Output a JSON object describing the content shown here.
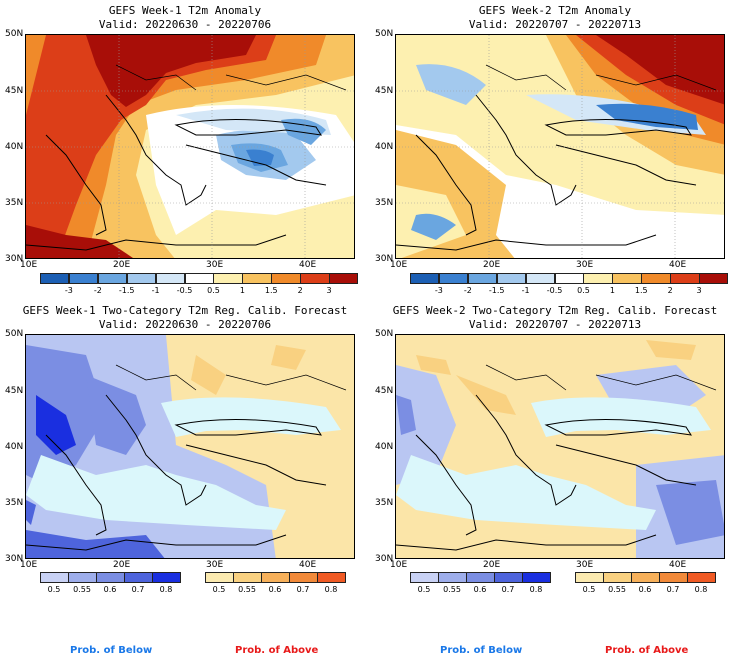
{
  "panels": [
    {
      "title": "GEFS Week-1 T2m Anomaly",
      "valid": "Valid: 20220630 - 20220706"
    },
    {
      "title": "GEFS Week-2 T2m Anomaly",
      "valid": "Valid: 20220707 - 20220713"
    },
    {
      "title": "GEFS Week-1 Two-Category T2m Reg. Calib. Forecast",
      "valid": "Valid: 20220630 - 20220706"
    },
    {
      "title": "GEFS Week-2 Two-Category T2m Reg. Calib. Forecast",
      "valid": "Valid: 20220707 - 20220713"
    }
  ],
  "axes": {
    "top_lat": [
      "50N",
      "45N",
      "40N",
      "35N",
      "30N"
    ],
    "bottom_lat": [
      "50N",
      "45N",
      "40N",
      "35N",
      "30N"
    ],
    "lon": [
      "10E",
      "20E",
      "30E",
      "40E"
    ]
  },
  "anomaly_colorbar": {
    "ticks": [
      "-3",
      "-2",
      "-1.5",
      "-1",
      "-0.5",
      "0.5",
      "1",
      "1.5",
      "2",
      "3"
    ],
    "colors": [
      "#1c5fb4",
      "#3a80d0",
      "#6aa6e0",
      "#a3c9ee",
      "#d4e7f7",
      "#ffffff",
      "#fdf0b0",
      "#f8c360",
      "#f08a2a",
      "#dc3e18",
      "#a80e08"
    ]
  },
  "prob_colorbars": {
    "below": {
      "ticks": [
        "0.5",
        "0.55",
        "0.6",
        "0.7",
        "0.8"
      ],
      "colors": [
        "#c9d2f5",
        "#9eaeeb",
        "#7b8ee3",
        "#4e64dc",
        "#1a2fe0"
      ]
    },
    "above": {
      "ticks": [
        "0.5",
        "0.55",
        "0.6",
        "0.7",
        "0.8"
      ],
      "colors": [
        "#fbeab0",
        "#f9d181",
        "#f6b05a",
        "#f28a3a",
        "#f05a24"
      ]
    },
    "land_bg_below": "#b9c6f2",
    "land_bg_above": "#fbe5a8",
    "sea": "#dbf7fb"
  },
  "legend": {
    "left_below": "Prob. of Below",
    "left_above": "Prob. of Above",
    "right_below": "Prob. of Below",
    "right_above": "Prob. of Above",
    "below_color": "#1a78e8",
    "above_color": "#e81a1a"
  }
}
